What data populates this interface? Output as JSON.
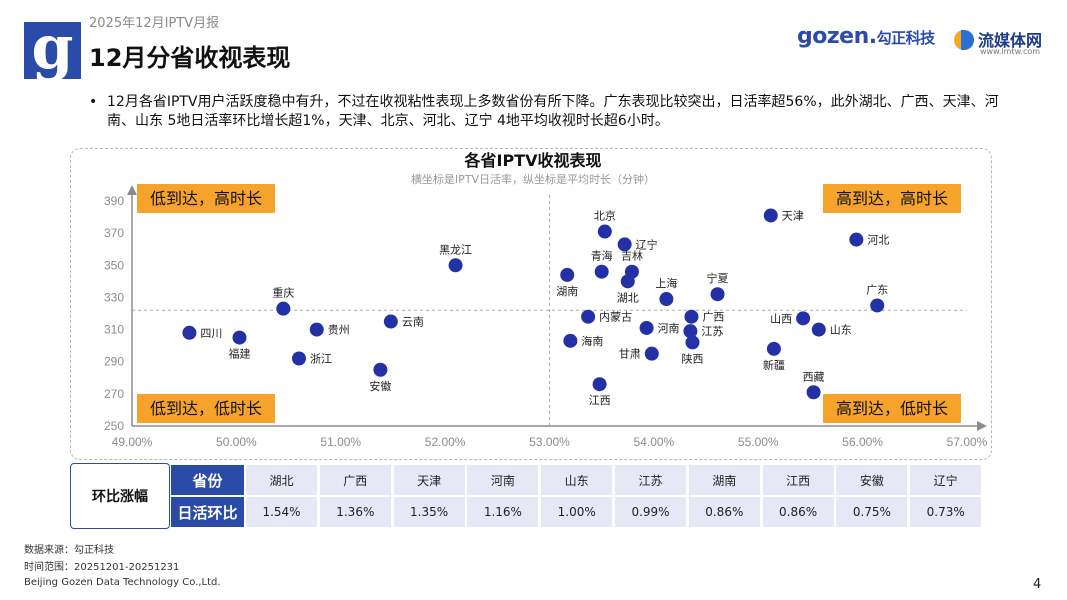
{
  "header": {
    "report_tag": "2025年12月IPTV月报",
    "title": "12月分省收视表现",
    "logo_letter": "g",
    "brand_gozen": "gozen.",
    "brand_gozen_cn": "勾正科技",
    "brand_lmt": "流媒体网",
    "brand_lmt_url": "www.lmtw.com"
  },
  "summary": "12月各省IPTV用户活跃度稳中有升，不过在收视粘性表现上多数省份有所下降。广东表现比较突出，日活率超56%，此外湖北、广西、天津、河南、山东 5地日活率环比增长超1%，天津、北京、河北、辽宁 4地平均收视时长超6小时。",
  "chart_data": {
    "type": "scatter",
    "title": "各省IPTV收视表现",
    "subtitle": "横坐标是IPTV日活率，纵坐标是平均时长（分钟）",
    "xlim": [
      49.0,
      57.0
    ],
    "ylim": [
      250,
      390
    ],
    "x_ticks": [
      "49.00%",
      "50.00%",
      "51.00%",
      "52.00%",
      "53.00%",
      "54.00%",
      "55.00%",
      "56.00%",
      "57.00%"
    ],
    "x_tick_values": [
      49,
      50,
      51,
      52,
      53,
      54,
      55,
      56,
      57
    ],
    "y_ticks": [
      "250",
      "270",
      "290",
      "310",
      "330",
      "350",
      "370",
      "390"
    ],
    "y_tick_values": [
      250,
      270,
      290,
      310,
      330,
      350,
      370,
      390
    ],
    "divider_x": 53.0,
    "divider_y": 322,
    "quadrants": {
      "top_left": "低到达，高时长",
      "top_right": "高到达，高时长",
      "bottom_left": "低到达，低时长",
      "bottom_right": "高到达，低时长"
    },
    "points": [
      {
        "name": "四川",
        "x": 49.55,
        "y": 308,
        "label_pos": "right"
      },
      {
        "name": "福建",
        "x": 50.03,
        "y": 305,
        "label_pos": "below"
      },
      {
        "name": "重庆",
        "x": 50.45,
        "y": 323,
        "label_pos": "above"
      },
      {
        "name": "浙江",
        "x": 50.6,
        "y": 292,
        "label_pos": "right"
      },
      {
        "name": "贵州",
        "x": 50.77,
        "y": 310,
        "label_pos": "right"
      },
      {
        "name": "安徽",
        "x": 51.38,
        "y": 285,
        "label_pos": "below"
      },
      {
        "name": "云南",
        "x": 51.48,
        "y": 315,
        "label_pos": "right"
      },
      {
        "name": "黑龙江",
        "x": 52.1,
        "y": 350,
        "label_pos": "above"
      },
      {
        "name": "湖南",
        "x": 53.17,
        "y": 344,
        "label_pos": "below"
      },
      {
        "name": "海南",
        "x": 53.2,
        "y": 303,
        "label_pos": "right"
      },
      {
        "name": "内蒙古",
        "x": 53.37,
        "y": 318,
        "label_pos": "right"
      },
      {
        "name": "江西",
        "x": 53.48,
        "y": 276,
        "label_pos": "below"
      },
      {
        "name": "北京",
        "x": 53.53,
        "y": 371,
        "label_pos": "above"
      },
      {
        "name": "青海",
        "x": 53.5,
        "y": 346,
        "label_pos": "above"
      },
      {
        "name": "辽宁",
        "x": 53.72,
        "y": 363,
        "label_pos": "right"
      },
      {
        "name": "湖北",
        "x": 53.75,
        "y": 340,
        "label_pos": "below"
      },
      {
        "name": "吉林",
        "x": 53.79,
        "y": 346,
        "label_pos": "above"
      },
      {
        "name": "河南",
        "x": 53.93,
        "y": 311,
        "label_pos": "right"
      },
      {
        "name": "甘肃",
        "x": 53.98,
        "y": 295,
        "label_pos": "left"
      },
      {
        "name": "上海",
        "x": 54.12,
        "y": 329,
        "label_pos": "above"
      },
      {
        "name": "广西",
        "x": 54.36,
        "y": 318,
        "label_pos": "right"
      },
      {
        "name": "江苏",
        "x": 54.35,
        "y": 309,
        "label_pos": "right"
      },
      {
        "name": "陕西",
        "x": 54.37,
        "y": 302,
        "label_pos": "below"
      },
      {
        "name": "宁夏",
        "x": 54.61,
        "y": 332,
        "label_pos": "above"
      },
      {
        "name": "天津",
        "x": 55.12,
        "y": 381,
        "label_pos": "right"
      },
      {
        "name": "新疆",
        "x": 55.15,
        "y": 298,
        "label_pos": "below"
      },
      {
        "name": "山西",
        "x": 55.43,
        "y": 317,
        "label_pos": "left"
      },
      {
        "name": "山东",
        "x": 55.58,
        "y": 310,
        "label_pos": "right"
      },
      {
        "name": "西藏",
        "x": 55.53,
        "y": 271,
        "label_pos": "above"
      },
      {
        "name": "河北",
        "x": 55.94,
        "y": 366,
        "label_pos": "right"
      },
      {
        "name": "广东",
        "x": 56.14,
        "y": 325,
        "label_pos": "above"
      }
    ]
  },
  "table": {
    "row_title": "环比涨幅",
    "header_label": "省份",
    "value_label": "日活环比",
    "provinces": [
      "湖北",
      "广西",
      "天津",
      "河南",
      "山东",
      "江苏",
      "湖南",
      "江西",
      "安徽",
      "辽宁"
    ],
    "values": [
      "1.54%",
      "1.36%",
      "1.35%",
      "1.16%",
      "1.00%",
      "0.99%",
      "0.86%",
      "0.86%",
      "0.75%",
      "0.73%"
    ]
  },
  "footer": {
    "source": "数据来源：勾正科技",
    "time_range": "时间范围：20251201-20251231",
    "company": "Beijing Gozen Data Technology Co.,Ltd.",
    "page_number": "4"
  },
  "colors": {
    "brand_blue": "#2b4ba8",
    "dot_blue": "#2431a6",
    "quadrant_orange": "#f5a32a",
    "axis_gray": "#8c8c8c"
  }
}
